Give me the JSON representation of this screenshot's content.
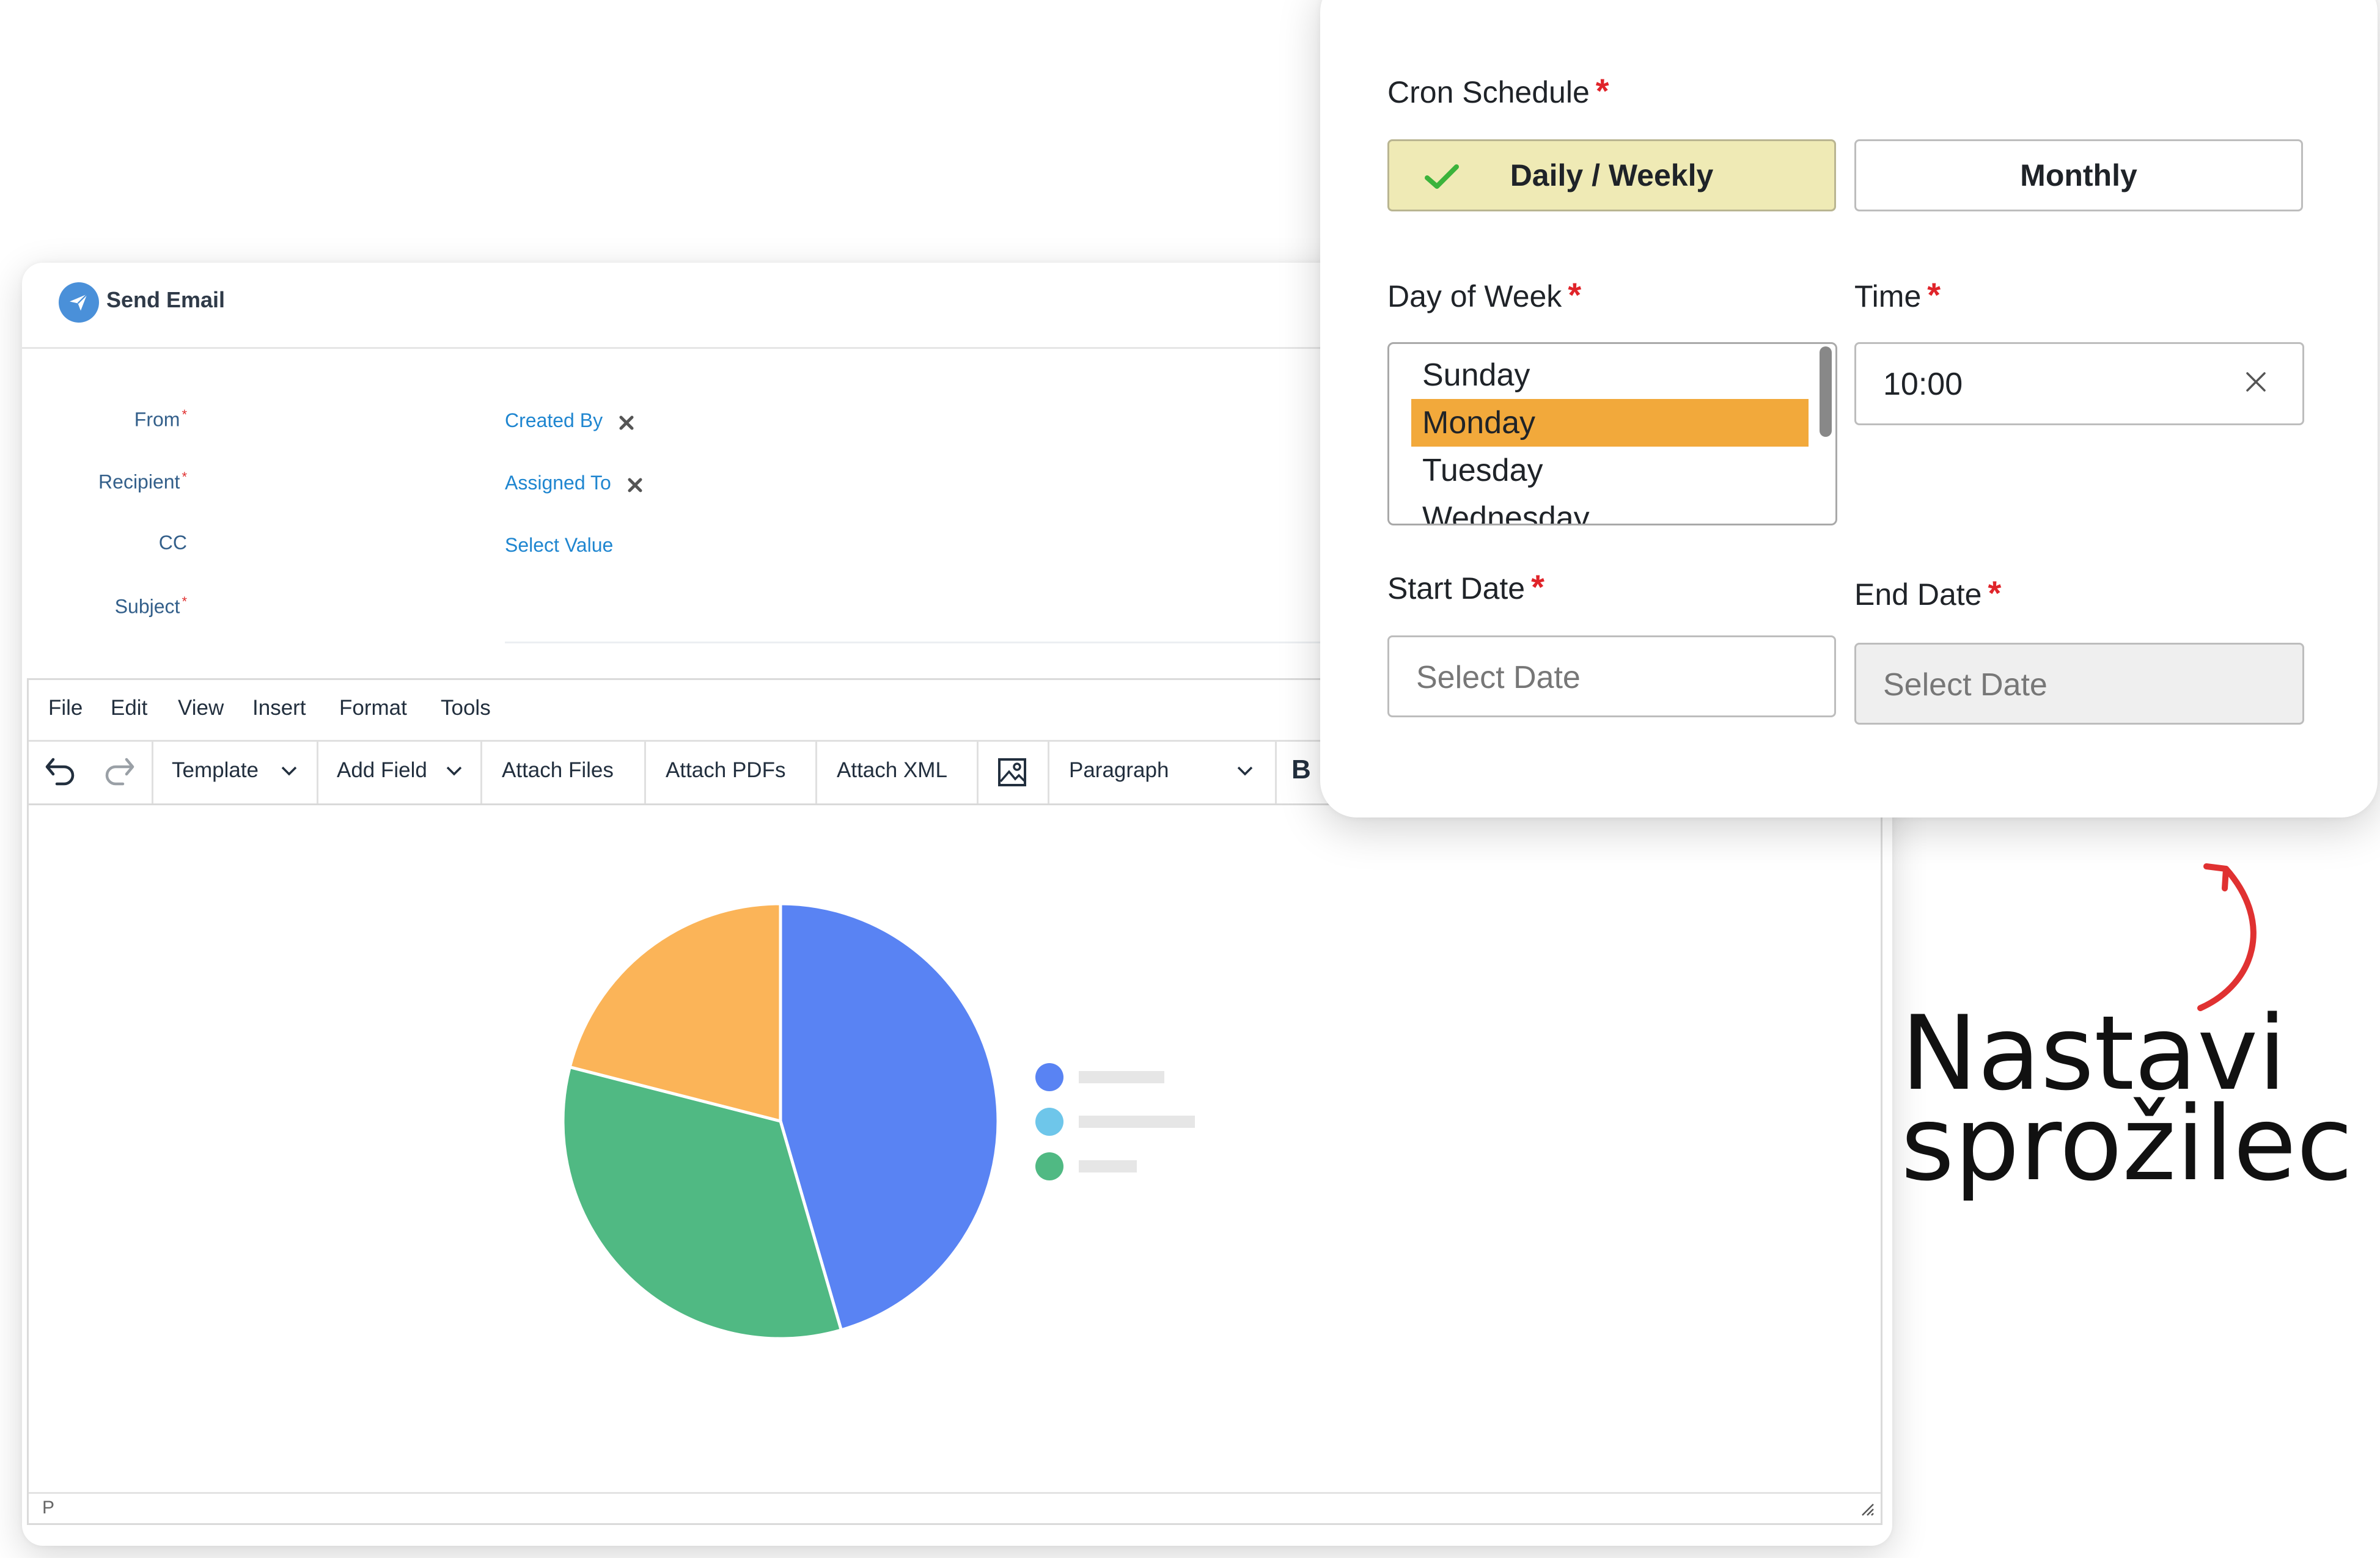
{
  "email": {
    "title": "Send Email",
    "fields": [
      {
        "label": "From",
        "required": true,
        "value": "Created By",
        "removable": true
      },
      {
        "label": "Recipient",
        "required": true,
        "value": "Assigned To",
        "removable": true
      },
      {
        "label": "CC",
        "required": false,
        "value": "Select Value",
        "removable": false
      },
      {
        "label": "Subject",
        "required": true,
        "value": "",
        "removable": false
      }
    ],
    "required_mark": "*",
    "menu": [
      "File",
      "Edit",
      "View",
      "Insert",
      "Format",
      "Tools"
    ],
    "toolbar": {
      "template": "Template",
      "add_field": "Add Field",
      "attach_files": "Attach Files",
      "attach_pdfs": "Attach PDFs",
      "attach_xml": "Attach XML",
      "block_format": "Paragraph",
      "bold": "B"
    },
    "status": "P"
  },
  "chart_data": {
    "type": "pie",
    "categories": [
      "",
      "",
      "",
      ""
    ],
    "values": [
      45.5,
      33.5,
      21.0,
      0
    ],
    "colors": [
      "#5983f3",
      "#50b983",
      "#fbb458",
      "#6ec6ea"
    ],
    "legend_colors": [
      "#5983f3",
      "#6ec6ea",
      "#50b983"
    ],
    "legend_placement": "right"
  },
  "cron": {
    "schedule_label": "Cron Schedule",
    "required_mark": "*",
    "options": [
      "Daily / Weekly",
      "Monthly"
    ],
    "selected_option": "Daily / Weekly",
    "day_label": "Day of Week",
    "days": [
      "Sunday",
      "Monday",
      "Tuesday",
      "Wednesday"
    ],
    "selected_day": "Monday",
    "time_label": "Time",
    "time_value": "10:00",
    "start_label": "Start Date",
    "start_placeholder": "Select Date",
    "end_label": "End Date",
    "end_placeholder": "Select Date"
  },
  "annotation": {
    "line1": "Nastavi",
    "line2": "sprožilec",
    "color": "#e03131"
  }
}
